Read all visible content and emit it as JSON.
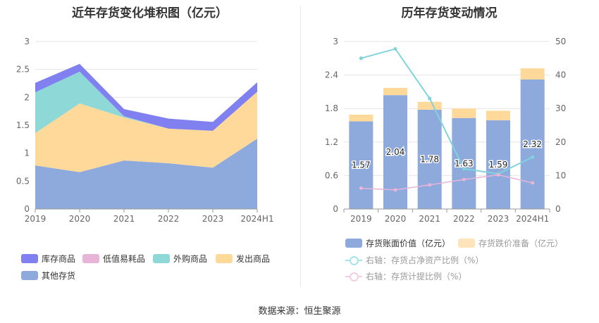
{
  "left_chart": {
    "title": "近年存货变化堆积图（亿元）",
    "chart_data": {
      "type": "area",
      "stacked": true,
      "categories": [
        "2019",
        "2020",
        "2021",
        "2022",
        "2023",
        "2024H1"
      ],
      "ylim": [
        0,
        3
      ],
      "yticks": [
        "0",
        "0.5",
        "1",
        "1.5",
        "2",
        "2.5",
        "3"
      ],
      "series": [
        {
          "name": "其他存货",
          "color": "#8eaadc",
          "values": [
            0.78,
            0.66,
            0.87,
            0.82,
            0.74,
            1.26
          ]
        },
        {
          "name": "发出商品",
          "color": "#ffd99a",
          "values": [
            0.58,
            1.23,
            0.77,
            0.62,
            0.66,
            0.84
          ]
        },
        {
          "name": "外购商品",
          "color": "#8ed8d8",
          "values": [
            0.73,
            0.57,
            0.02,
            0.0,
            0.0,
            0.0
          ]
        },
        {
          "name": "低值易耗品",
          "color": "#e8b4d8",
          "values": [
            0.0,
            0.0,
            0.0,
            0.0,
            0.0,
            0.0
          ]
        },
        {
          "name": "库存商品",
          "color": "#8080f0",
          "values": [
            0.17,
            0.14,
            0.13,
            0.18,
            0.16,
            0.17
          ]
        }
      ],
      "legend": [
        {
          "name": "库存商品",
          "color": "#8080f0"
        },
        {
          "name": "低值易耗品",
          "color": "#e8b4d8"
        },
        {
          "name": "外购商品",
          "color": "#8ed8d8"
        },
        {
          "name": "发出商品",
          "color": "#ffd99a"
        },
        {
          "name": "其他存货",
          "color": "#8eaadc"
        }
      ],
      "legend_position": "bottom"
    }
  },
  "right_chart": {
    "title": "历年存货变动情况",
    "chart_data": {
      "type": "bar",
      "stacked": true,
      "categories": [
        "2019",
        "2020",
        "2021",
        "2022",
        "2023",
        "2024H1"
      ],
      "ylim": [
        0,
        3
      ],
      "yticks": [
        "0",
        "0.6",
        "1.2",
        "1.8",
        "2.4",
        "3"
      ],
      "y2lim": [
        0,
        50
      ],
      "y2ticks": [
        "0",
        "10",
        "20",
        "30",
        "40",
        "50"
      ],
      "bar_series": [
        {
          "name": "存货账面价值（亿元）",
          "color": "#8eaadc",
          "values": [
            1.57,
            2.04,
            1.78,
            1.63,
            1.59,
            2.32
          ],
          "labels": [
            "1.57",
            "2.04",
            "1.78",
            "1.63",
            "1.59",
            "2.32"
          ]
        },
        {
          "name": "存货跌价准备（亿元）",
          "color": "#ffd99a",
          "values": [
            0.12,
            0.13,
            0.14,
            0.17,
            0.17,
            0.2
          ]
        }
      ],
      "line_series": [
        {
          "name": "右轴：存货占净资产比例（%）",
          "color": "#7fd4dc",
          "axis": "right",
          "values": [
            45,
            47.8,
            33,
            12,
            10.5,
            15.5
          ]
        },
        {
          "name": "右轴：存货计提比例（%）",
          "color": "#e8b4d8",
          "axis": "right",
          "values": [
            6.2,
            5.7,
            7.2,
            8.8,
            10.2,
            7.8
          ]
        }
      ],
      "legend_position": "bottom"
    }
  },
  "source": "数据来源：恒生聚源"
}
